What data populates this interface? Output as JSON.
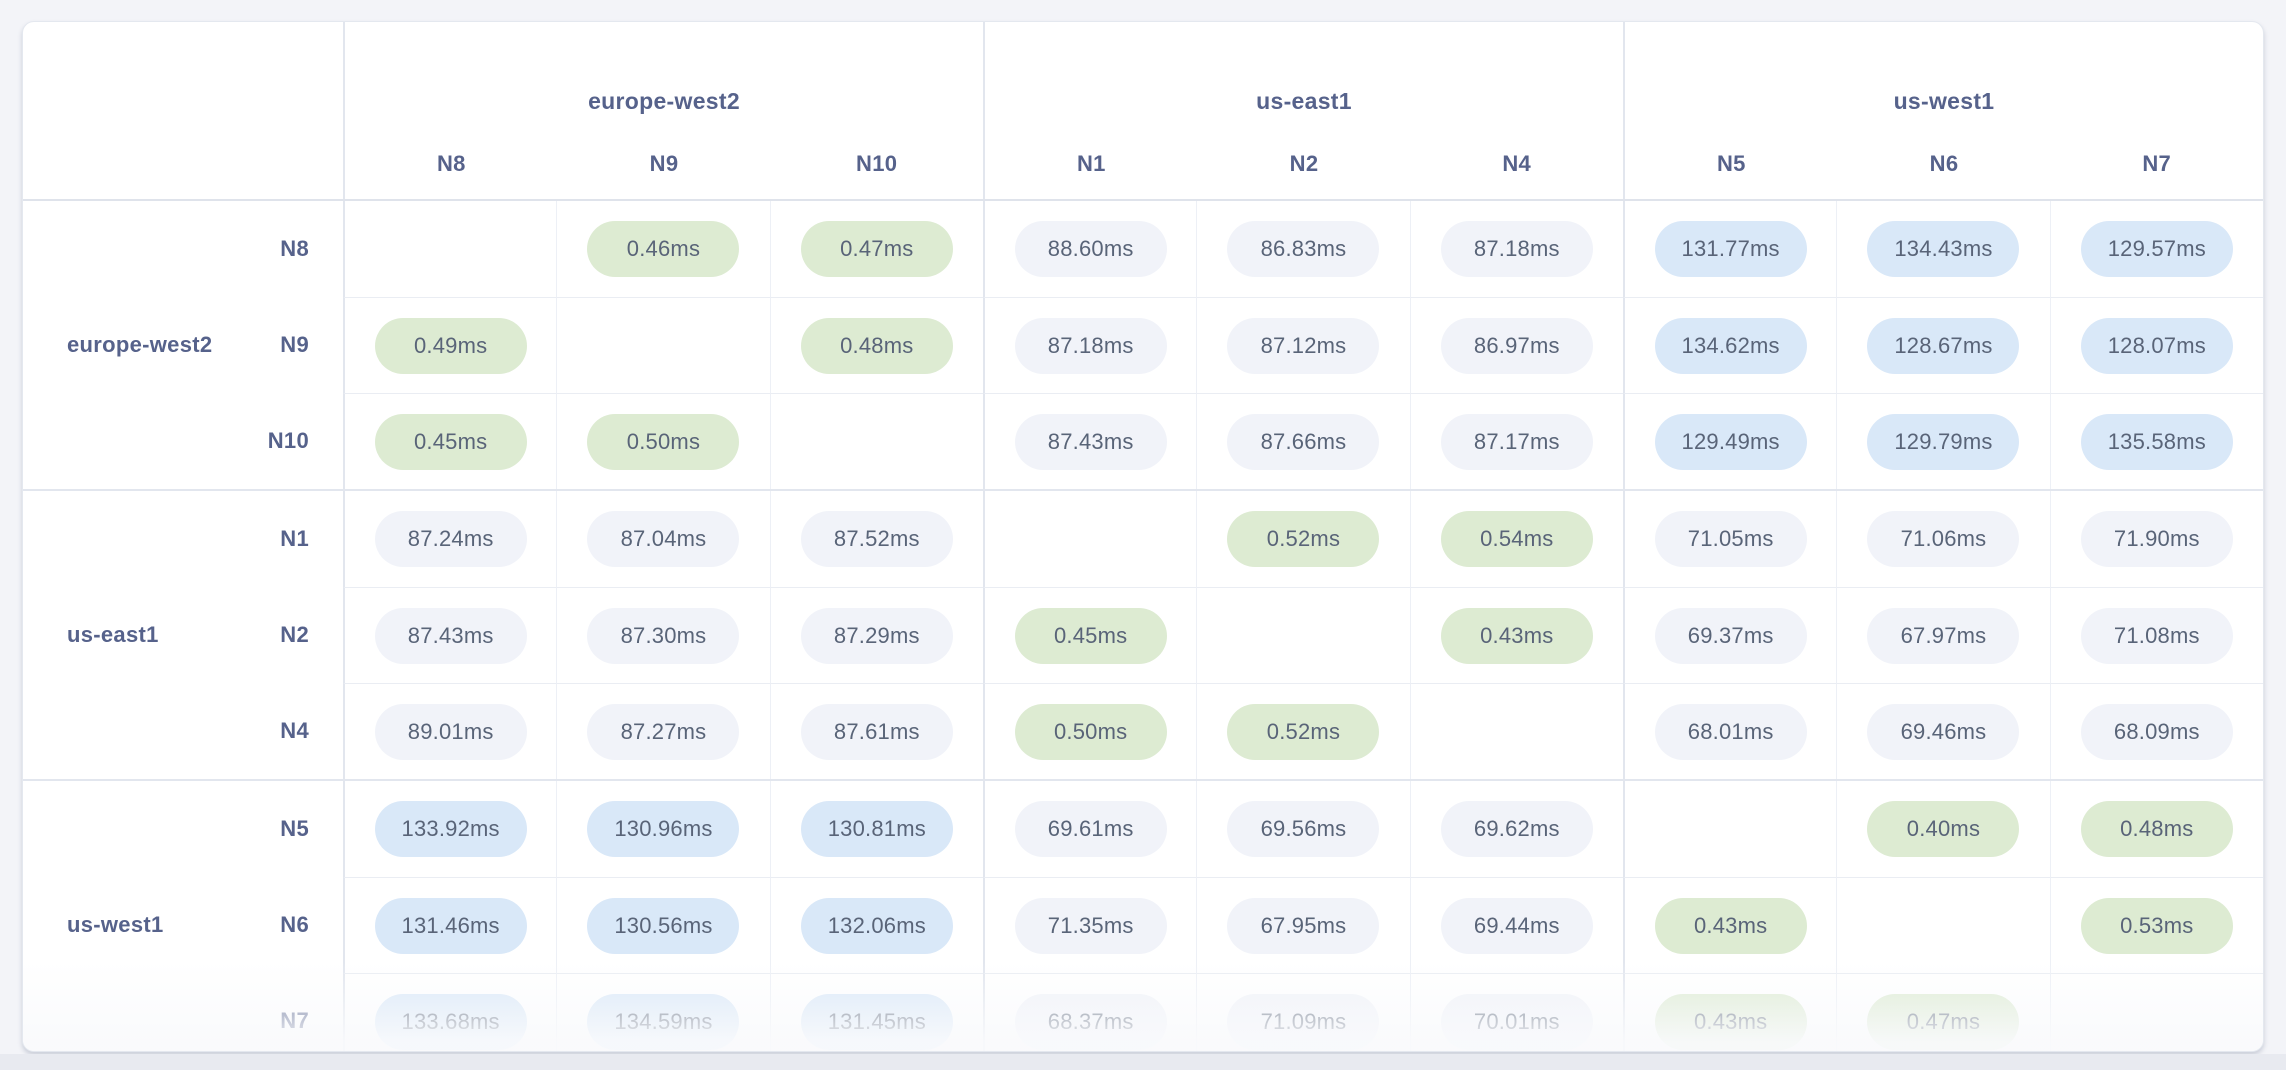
{
  "palette": {
    "page_bg": "#f3f4f8",
    "card_bg": "#ffffff",
    "card_border": "#e4e8ef",
    "group_border": "#e2e6ee",
    "cell_border": "#edf0f6",
    "label_text": "#56628b",
    "pill_text": "#596478",
    "pill_low_bg": "#ddebd2",
    "pill_mid_bg": "#f1f3f9",
    "pill_high_bg": "#d9e8f8"
  },
  "matrix": {
    "unit": "ms",
    "col_groups": [
      {
        "region": "europe-west2",
        "nodes": [
          "N8",
          "N9",
          "N10"
        ]
      },
      {
        "region": "us-east1",
        "nodes": [
          "N1",
          "N2",
          "N4"
        ]
      },
      {
        "region": "us-west1",
        "nodes": [
          "N5",
          "N6",
          "N7"
        ]
      }
    ],
    "row_groups": [
      {
        "region": "europe-west2",
        "rows": [
          {
            "node": "N8",
            "values": [
              null,
              "0.46ms",
              "0.47ms",
              "88.60ms",
              "86.83ms",
              "87.18ms",
              "131.77ms",
              "134.43ms",
              "129.57ms"
            ]
          },
          {
            "node": "N9",
            "values": [
              "0.49ms",
              null,
              "0.48ms",
              "87.18ms",
              "87.12ms",
              "86.97ms",
              "134.62ms",
              "128.67ms",
              "128.07ms"
            ]
          },
          {
            "node": "N10",
            "values": [
              "0.45ms",
              "0.50ms",
              null,
              "87.43ms",
              "87.66ms",
              "87.17ms",
              "129.49ms",
              "129.79ms",
              "135.58ms"
            ]
          }
        ]
      },
      {
        "region": "us-east1",
        "rows": [
          {
            "node": "N1",
            "values": [
              "87.24ms",
              "87.04ms",
              "87.52ms",
              null,
              "0.52ms",
              "0.54ms",
              "71.05ms",
              "71.06ms",
              "71.90ms"
            ]
          },
          {
            "node": "N2",
            "values": [
              "87.43ms",
              "87.30ms",
              "87.29ms",
              "0.45ms",
              null,
              "0.43ms",
              "69.37ms",
              "67.97ms",
              "71.08ms"
            ]
          },
          {
            "node": "N4",
            "values": [
              "89.01ms",
              "87.27ms",
              "87.61ms",
              "0.50ms",
              "0.52ms",
              null,
              "68.01ms",
              "69.46ms",
              "68.09ms"
            ]
          }
        ]
      },
      {
        "region": "us-west1",
        "rows": [
          {
            "node": "N5",
            "values": [
              "133.92ms",
              "130.96ms",
              "130.81ms",
              "69.61ms",
              "69.56ms",
              "69.62ms",
              null,
              "0.40ms",
              "0.48ms"
            ]
          },
          {
            "node": "N6",
            "values": [
              "131.46ms",
              "130.56ms",
              "132.06ms",
              "71.35ms",
              "67.95ms",
              "69.44ms",
              "0.43ms",
              null,
              "0.53ms"
            ]
          },
          {
            "node": "N7",
            "values": [
              "133.68ms",
              "134.59ms",
              "131.45ms",
              "68.37ms",
              "71.09ms",
              "70.01ms",
              "0.43ms",
              "0.47ms",
              null
            ]
          }
        ]
      }
    ]
  }
}
